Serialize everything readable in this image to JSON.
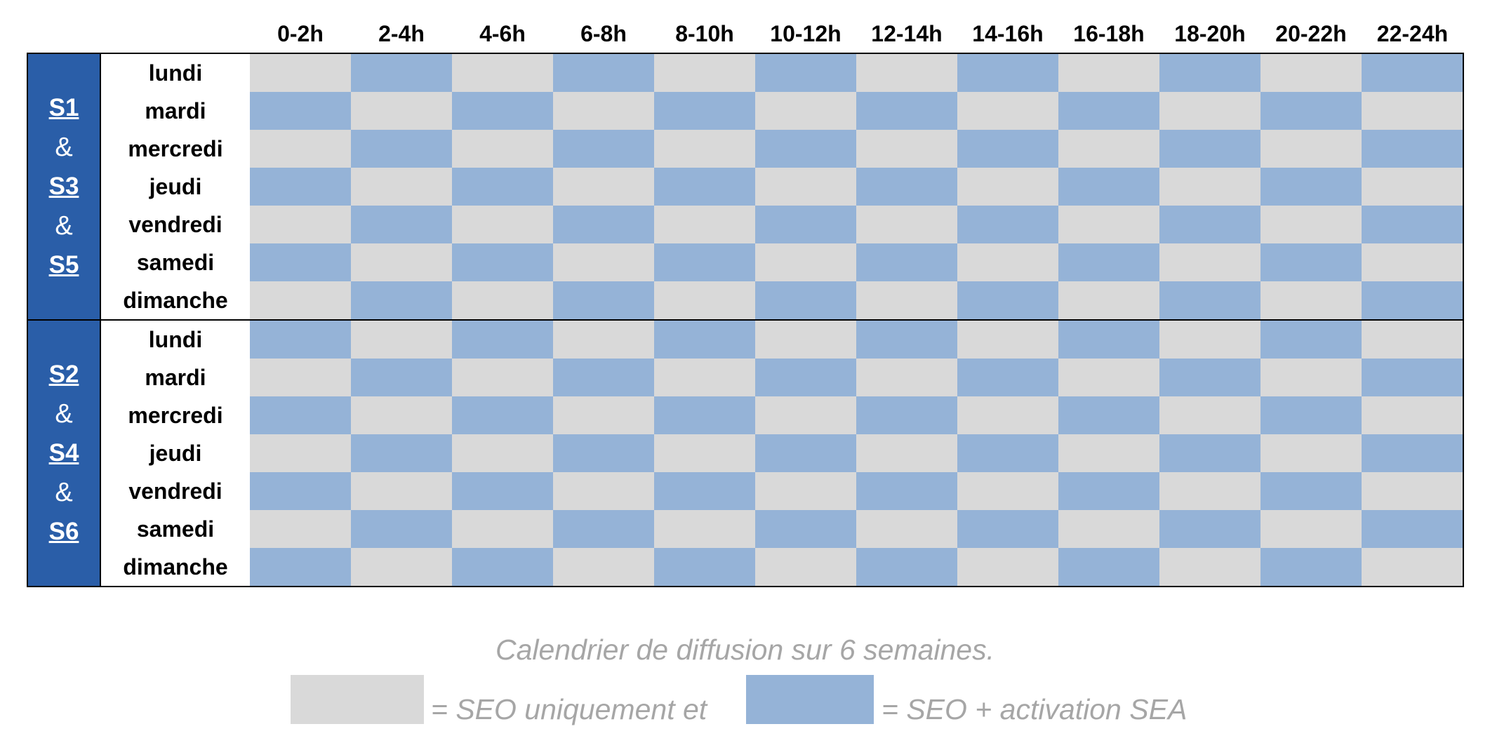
{
  "hours": [
    "0-2h",
    "2-4h",
    "4-6h",
    "6-8h",
    "8-10h",
    "10-12h",
    "12-14h",
    "14-16h",
    "16-18h",
    "18-20h",
    "20-22h",
    "22-24h"
  ],
  "days": [
    "lundi",
    "mardi",
    "mercredi",
    "jeudi",
    "vendredi",
    "samedi",
    "dimanche"
  ],
  "blocks": [
    {
      "weeks_label": [
        "S1",
        "&",
        "S3",
        "&",
        "S5"
      ],
      "start_color": 0
    },
    {
      "weeks_label": [
        "S2",
        "&",
        "S4",
        "&",
        "S6"
      ],
      "start_color": 1
    }
  ],
  "caption": "Calendrier de diffusion sur 6 semaines.",
  "legend": {
    "seo_only": "= SEO uniquement et",
    "seo_sea": "= SEO + activation SEA"
  },
  "colors": {
    "seo_only": "#d9d9d9",
    "seo_sea": "#95b3d7",
    "week_band": "#2a5ea8"
  }
}
